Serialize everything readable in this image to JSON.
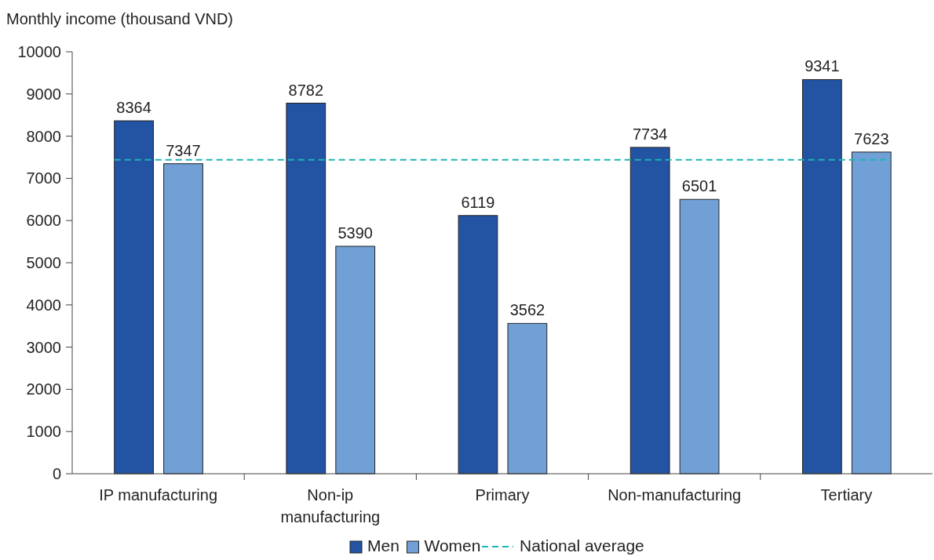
{
  "chart_data": {
    "type": "bar",
    "ylabel": "Monthly income (thousand VND)",
    "categories": [
      "IP manufacturing",
      "Non-ip manufacturing",
      "Primary",
      "Non-manufacturing",
      "Tertiary"
    ],
    "series": [
      {
        "name": "Men",
        "color": "#2353a3",
        "values": [
          8364,
          8782,
          6119,
          7734,
          9341
        ]
      },
      {
        "name": "Women",
        "color": "#70a0d6",
        "values": [
          7347,
          5390,
          3562,
          6501,
          7623
        ]
      }
    ],
    "ylim": [
      0,
      10000
    ],
    "yticks": [
      0,
      1000,
      2000,
      3000,
      4000,
      5000,
      6000,
      7000,
      8000,
      9000,
      10000
    ],
    "data_labels": true,
    "grid": false,
    "legend": "bottom",
    "ref_lines": [
      {
        "axis": "y",
        "value": 7440,
        "label": "National average",
        "color": "#1fb5b5",
        "line_style": "dashed"
      }
    ]
  }
}
